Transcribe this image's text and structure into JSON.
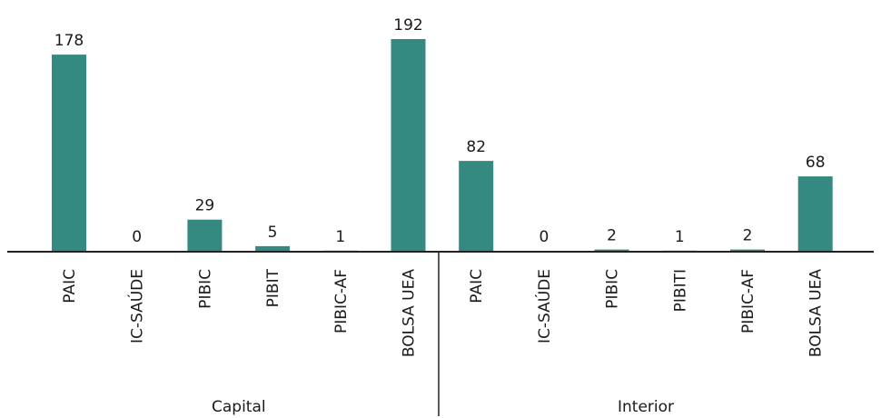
{
  "chart_data": {
    "type": "bar",
    "title": "",
    "xlabel": "",
    "ylabel": "",
    "ylim": [
      0,
      192
    ],
    "grid": false,
    "legend": "none",
    "bar_color": "#348a80",
    "groups": [
      {
        "name": "Capital",
        "categories": [
          "PAIC",
          "IC-SAÚDE",
          "PIBIC",
          "PIBIT",
          "PIBIC-AF",
          "BOLSA UEA"
        ],
        "values": [
          178,
          0,
          29,
          5,
          1,
          192
        ]
      },
      {
        "name": "Interior",
        "categories": [
          "PAIC",
          "IC-SAÚDE",
          "PIBIC",
          "PIBITI",
          "PIBIC-AF",
          "BOLSA UEA"
        ],
        "values": [
          82,
          0,
          2,
          1,
          2,
          68
        ]
      }
    ]
  }
}
